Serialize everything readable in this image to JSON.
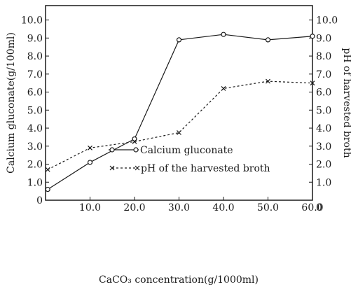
{
  "chart_data": {
    "type": "line",
    "xlabel": "CaCO₃ concentration(g/1000ml)",
    "ylabel": "Calcium gluconate(g/100ml)",
    "y2label": "pH of harvested broth",
    "xlim": [
      0,
      60
    ],
    "ylim": [
      0,
      10.8
    ],
    "y2lim": [
      0,
      10.8
    ],
    "x_ticks": [
      "10.0",
      "20.0",
      "30.0",
      "40.0",
      "50.0",
      "60.0"
    ],
    "y_ticks": [
      "1.0",
      "2.0",
      "3.0",
      "4.0",
      "5.0",
      "6.0",
      "7.0",
      "8.0",
      "9.0",
      "10.0"
    ],
    "y2_ticks": [
      "1.0",
      "2.0",
      "3.0",
      "4.0",
      "5.0",
      "6.0",
      "7.0",
      "8.0",
      "9.0",
      "10.0"
    ],
    "origin_labels": {
      "x": "0",
      "y": "0"
    },
    "grid": false,
    "legend_position": "center-left",
    "series": [
      {
        "name": "Calcium gluconate",
        "axis": "left",
        "marker": "circle",
        "line": "solid",
        "x": [
          0.5,
          10,
          20,
          30,
          40,
          50,
          60
        ],
        "y": [
          0.6,
          2.1,
          3.4,
          8.9,
          9.2,
          8.9,
          9.1
        ]
      },
      {
        "name": "pH of the harvested broth",
        "axis": "right",
        "marker": "x",
        "line": "dashed",
        "x": [
          0.5,
          10,
          20,
          30,
          40,
          50,
          60
        ],
        "y": [
          1.7,
          2.9,
          3.25,
          3.75,
          6.2,
          6.6,
          6.5
        ]
      }
    ]
  }
}
